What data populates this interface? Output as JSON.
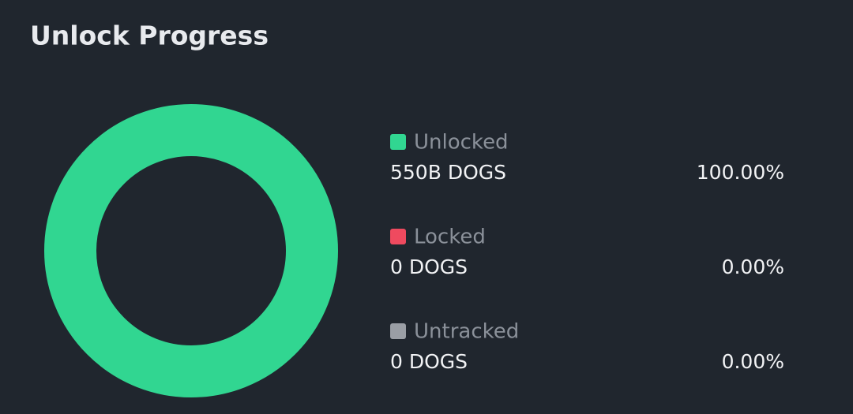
{
  "chart_data": {
    "type": "donut",
    "title": "Unlock Progress",
    "series": [
      {
        "name": "Unlocked",
        "color": "#31d691",
        "amount": "550B DOGS",
        "value": 100,
        "value_label": "100.00%"
      },
      {
        "name": "Locked",
        "color": "#ef4a5f",
        "amount": "0 DOGS",
        "value": 0,
        "value_label": "0.00%"
      },
      {
        "name": "Untracked",
        "color": "#9a9ea5",
        "amount": "0 DOGS",
        "value": 0,
        "value_label": "0.00%"
      }
    ]
  }
}
